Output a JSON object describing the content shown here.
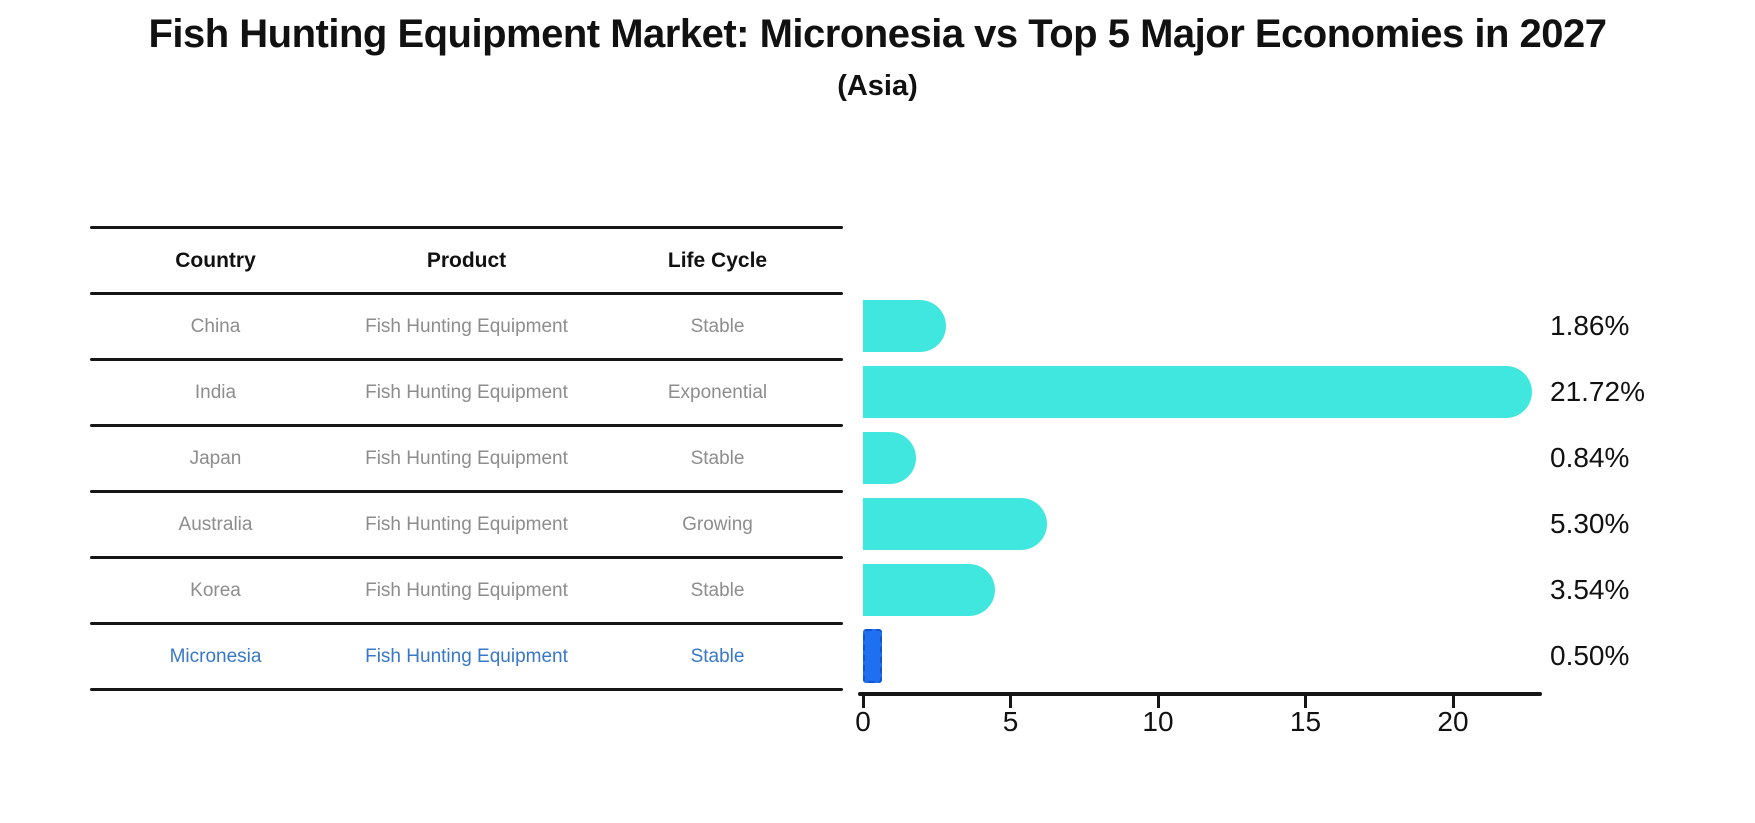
{
  "title": "Fish Hunting Equipment Market: Micronesia vs Top 5 Major Economies in 2027",
  "subtitle": "(Asia)",
  "table": {
    "headers": [
      "Country",
      "Product",
      "Life Cycle"
    ],
    "rows": [
      {
        "country": "China",
        "product": "Fish Hunting Equipment",
        "life_cycle": "Stable"
      },
      {
        "country": "India",
        "product": "Fish Hunting Equipment",
        "life_cycle": "Exponential"
      },
      {
        "country": "Japan",
        "product": "Fish Hunting Equipment",
        "life_cycle": "Stable"
      },
      {
        "country": "Australia",
        "product": "Fish Hunting Equipment",
        "life_cycle": "Growing"
      },
      {
        "country": "Korea",
        "product": "Fish Hunting Equipment",
        "life_cycle": "Stable"
      },
      {
        "country": "Micronesia",
        "product": "Fish Hunting Equipment",
        "life_cycle": "Stable"
      }
    ]
  },
  "chart_data": {
    "type": "bar",
    "orientation": "horizontal",
    "title": "Fish Hunting Equipment Market: Micronesia vs Top 5 Major Economies in 2027",
    "subtitle": "(Asia)",
    "categories": [
      "China",
      "India",
      "Japan",
      "Australia",
      "Korea",
      "Micronesia"
    ],
    "values": [
      1.86,
      21.72,
      0.84,
      5.3,
      3.54,
      0.5
    ],
    "value_labels": [
      "1.86%",
      "21.72%",
      "0.84%",
      "5.30%",
      "3.54%",
      "0.50%"
    ],
    "x_ticks": [
      0,
      5,
      10,
      15,
      20
    ],
    "xlim": [
      0,
      23
    ],
    "grid": false,
    "legend": "none",
    "highlight_index": 5
  },
  "colors": {
    "bar": "#40E7DF",
    "highlight_bar": "#1E70F0",
    "highlight_text": "#3878C8",
    "ink": "#161616",
    "muted_text": "#8d8d8d"
  }
}
